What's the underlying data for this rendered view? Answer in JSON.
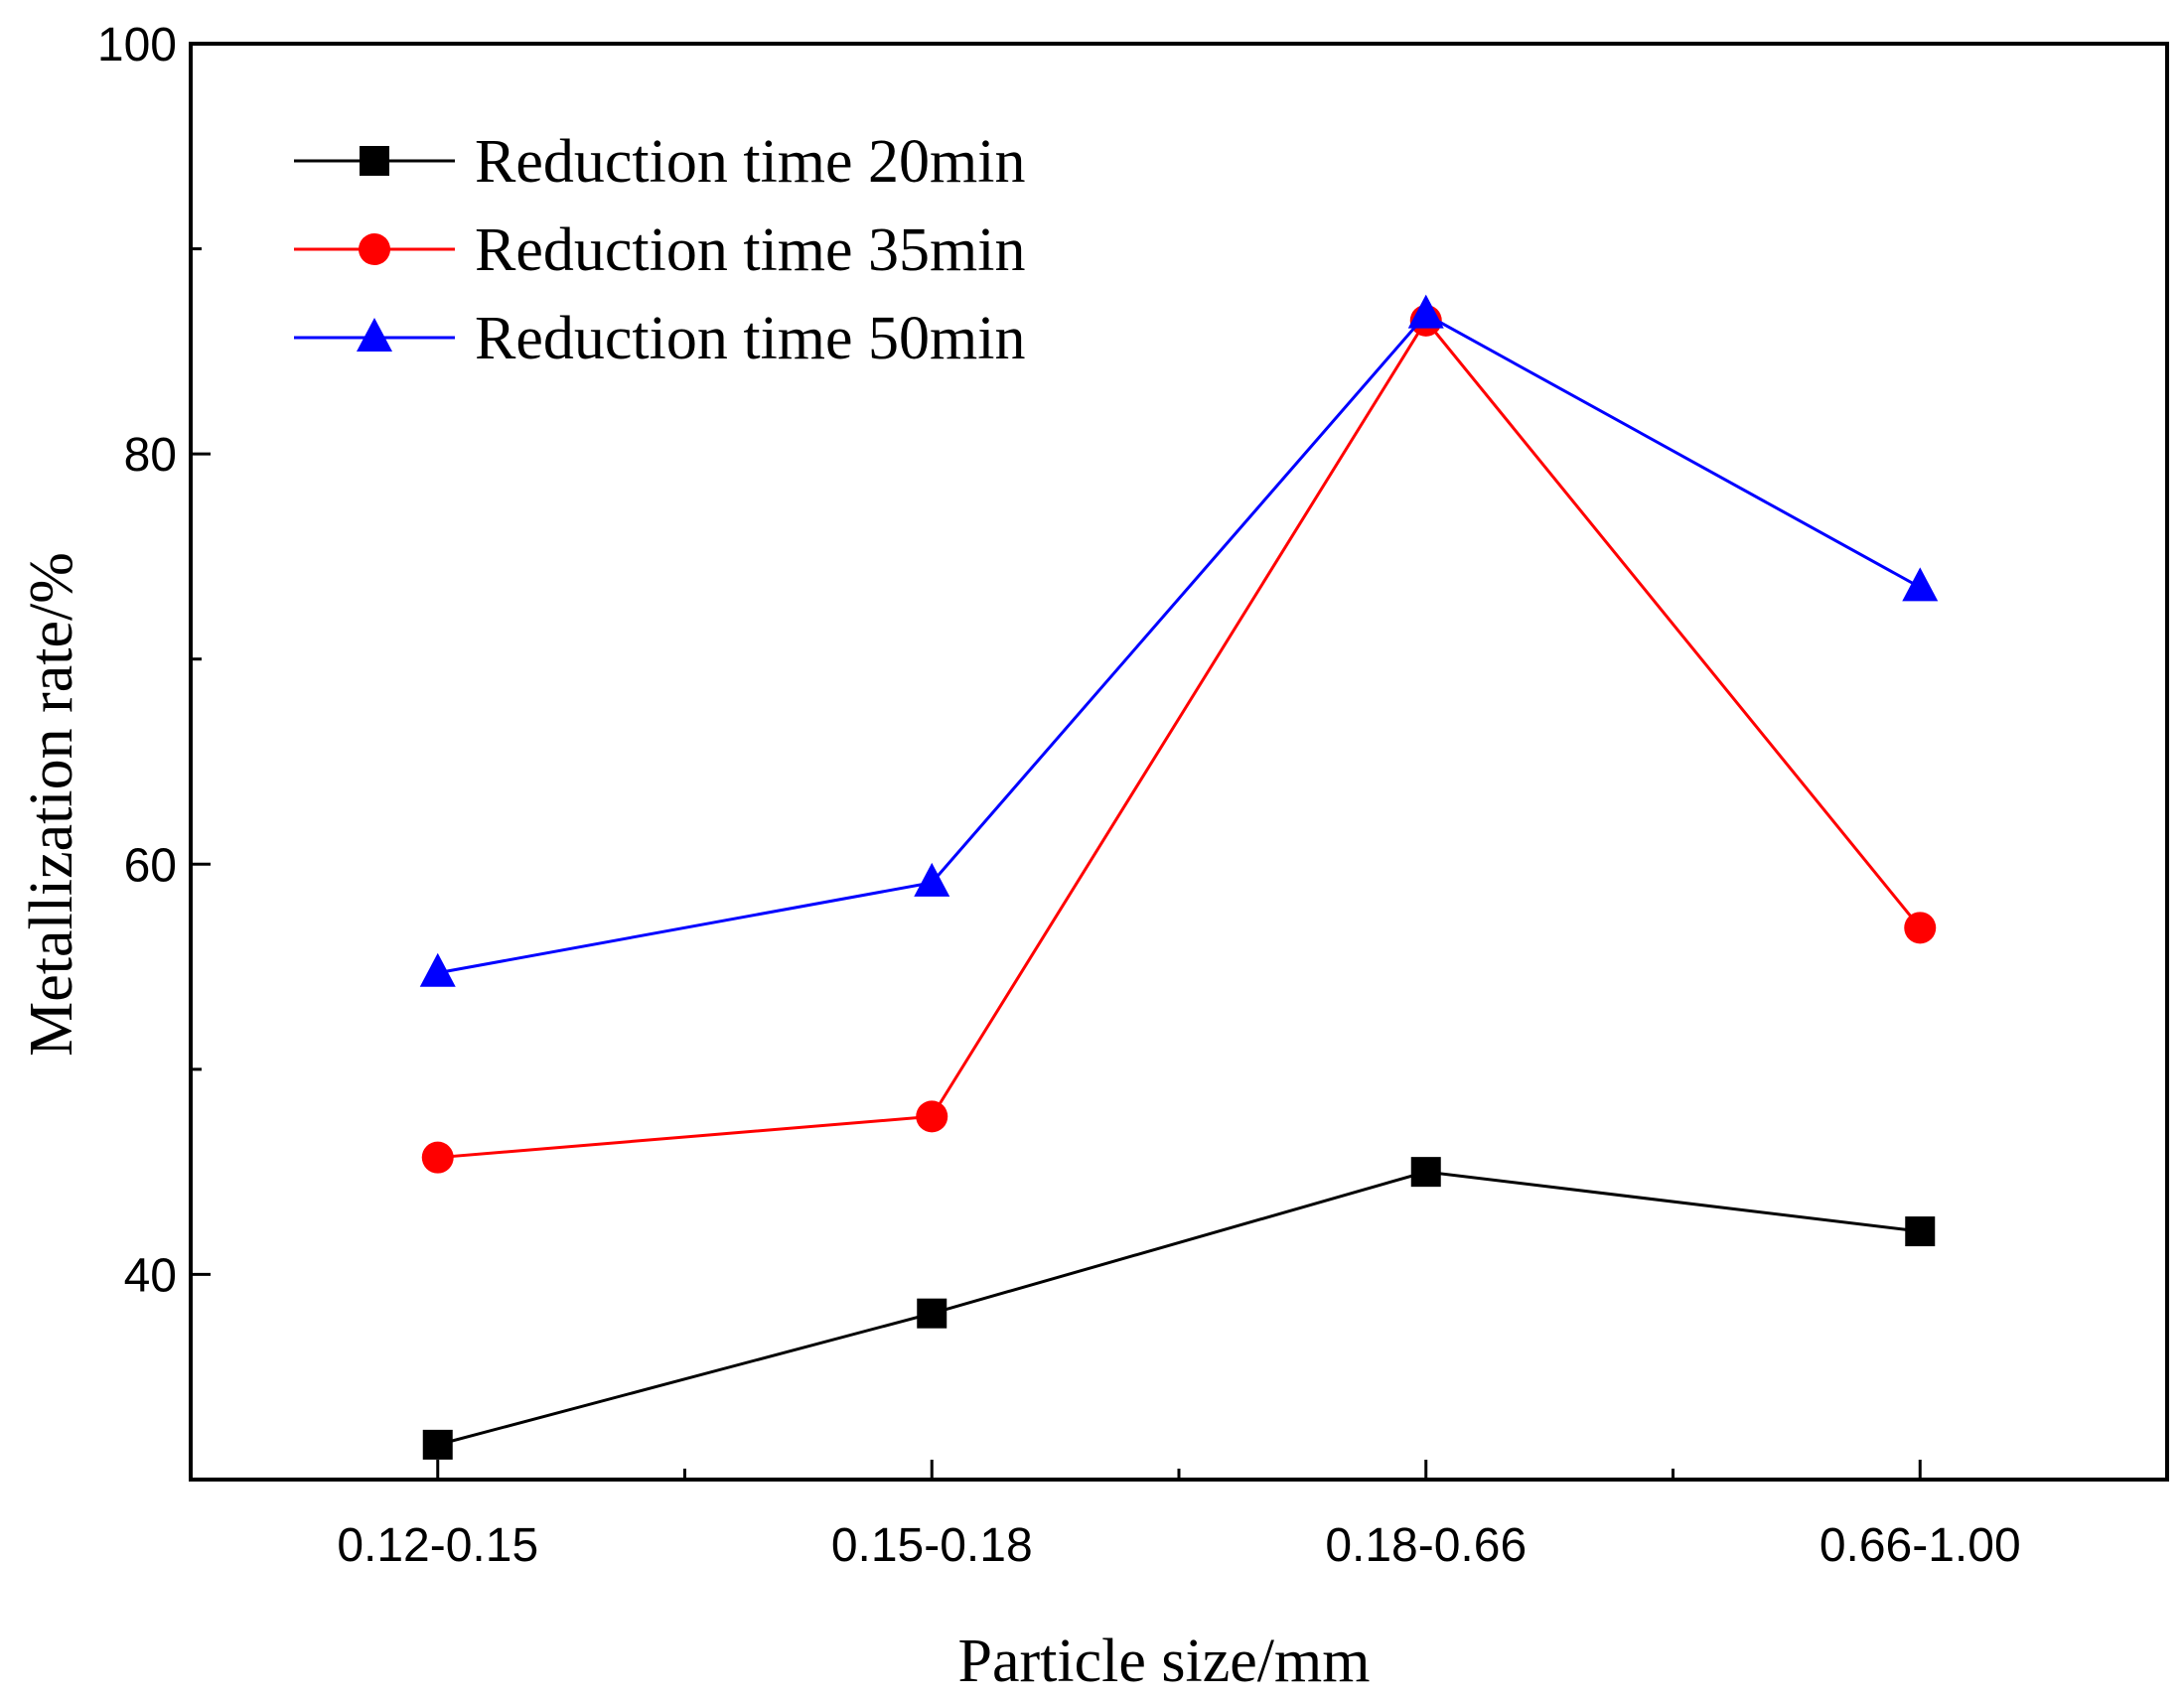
{
  "chart_data": {
    "type": "line",
    "title": "",
    "xlabel": "Particle size/mm",
    "ylabel": "Metallization rate/%",
    "categories": [
      "0.12-0.15",
      "0.15-0.18",
      "0.18-0.66",
      "0.66-1.00"
    ],
    "ylim": [
      30,
      100
    ],
    "yticks": [
      40,
      60,
      80,
      100
    ],
    "grid": false,
    "legend_position": "top-left",
    "series": [
      {
        "name": "Reduction time 20min",
        "color": "#000000",
        "marker": "square",
        "values": [
          31.7,
          38.1,
          45.0,
          42.1
        ]
      },
      {
        "name": "Reduction time 35min",
        "color": "#ff0000",
        "marker": "circle",
        "values": [
          45.7,
          47.7,
          86.5,
          56.9
        ]
      },
      {
        "name": "Reduction time 50min",
        "color": "#0000ff",
        "marker": "triangle",
        "values": [
          54.7,
          59.1,
          86.8,
          73.5
        ]
      }
    ]
  }
}
